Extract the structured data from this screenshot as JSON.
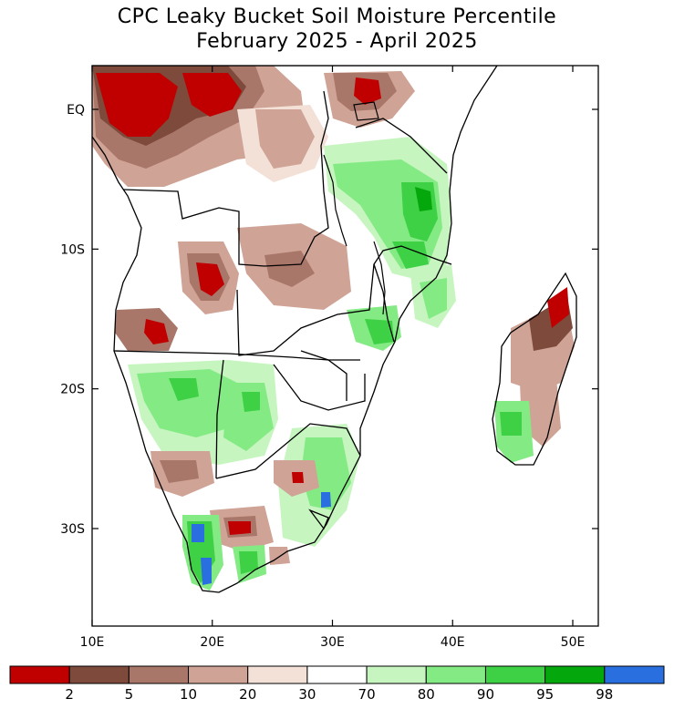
{
  "title_line1": "CPC Leaky Bucket Soil Moisture Percentile",
  "title_line2": "February 2025 - April 2025",
  "lat_ticks": [
    {
      "label": "EQ",
      "lat": 0
    },
    {
      "label": "10S",
      "lat": -10
    },
    {
      "label": "20S",
      "lat": -20
    },
    {
      "label": "30S",
      "lat": -30
    }
  ],
  "lon_ticks": [
    {
      "label": "10E",
      "lon": 10
    },
    {
      "label": "20E",
      "lon": 20
    },
    {
      "label": "30E",
      "lon": 30
    },
    {
      "label": "40E",
      "lon": 40
    },
    {
      "label": "50E",
      "lon": 50
    }
  ],
  "extent": {
    "lon_min": 10,
    "lon_max": 52,
    "lat_min": -37,
    "lat_max": 3
  },
  "colorbar": {
    "colors": [
      "#c00000",
      "#7d4a3c",
      "#a9776a",
      "#cfa395",
      "#f3e0d6",
      "#ffffff",
      "#c6f5c0",
      "#84ea84",
      "#3ed145",
      "#05a80c",
      "#2a6fe0"
    ],
    "labels": [
      "2",
      "5",
      "10",
      "20",
      "30",
      "70",
      "80",
      "90",
      "95",
      "98"
    ]
  },
  "colors": {
    "coast": "#000000",
    "dry_extreme": "#c00000",
    "dry_severe": "#7d4a3c",
    "dry_moderate": "#a9776a",
    "dry_abnormal": "#cfa395",
    "dry_slight": "#f3e0d6",
    "wet_slight": "#c6f5c0",
    "wet_moderate": "#84ea84",
    "wet_severe": "#3ed145",
    "wet_extreme": "#05a80c",
    "wet_exceptional": "#2a6fe0"
  }
}
